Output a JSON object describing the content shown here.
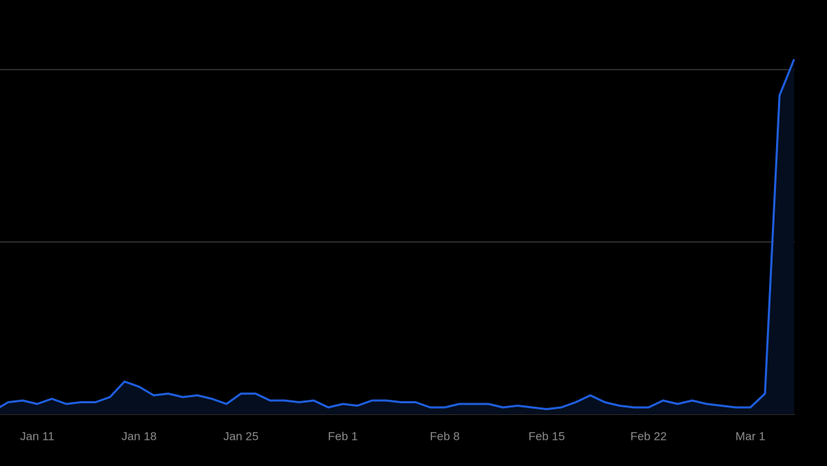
{
  "chart_data": {
    "type": "area",
    "categories": [
      null,
      null,
      null,
      "Jan 11",
      null,
      null,
      null,
      null,
      null,
      null,
      "Jan 18",
      null,
      null,
      null,
      null,
      null,
      null,
      "Jan 25",
      null,
      null,
      null,
      null,
      null,
      null,
      "Feb 1",
      null,
      null,
      null,
      null,
      null,
      null,
      "Feb 8",
      null,
      null,
      null,
      null,
      null,
      null,
      "Feb 15",
      null,
      null,
      null,
      null,
      null,
      null,
      "Feb 22",
      null,
      null,
      null,
      null,
      null,
      null,
      "Mar 1",
      null,
      null,
      null
    ],
    "values": [
      0.02,
      0.07,
      0.08,
      0.06,
      0.09,
      0.06,
      0.07,
      0.07,
      0.1,
      0.19,
      0.16,
      0.11,
      0.12,
      0.1,
      0.11,
      0.09,
      0.06,
      0.12,
      0.12,
      0.08,
      0.08,
      0.07,
      0.08,
      0.04,
      0.06,
      0.05,
      0.08,
      0.08,
      0.07,
      0.07,
      0.04,
      0.04,
      0.06,
      0.06,
      0.06,
      0.04,
      0.05,
      0.04,
      0.03,
      0.04,
      0.07,
      0.11,
      0.07,
      0.05,
      0.04,
      0.04,
      0.08,
      0.06,
      0.08,
      0.06,
      0.05,
      0.04,
      0.04,
      0.12,
      1.85,
      2.06
    ],
    "color": "#1f5fe0",
    "fill": "#050e1e",
    "ylim": [
      0,
      2.4
    ],
    "yticks": [
      0,
      1,
      2
    ],
    "grid": true
  }
}
